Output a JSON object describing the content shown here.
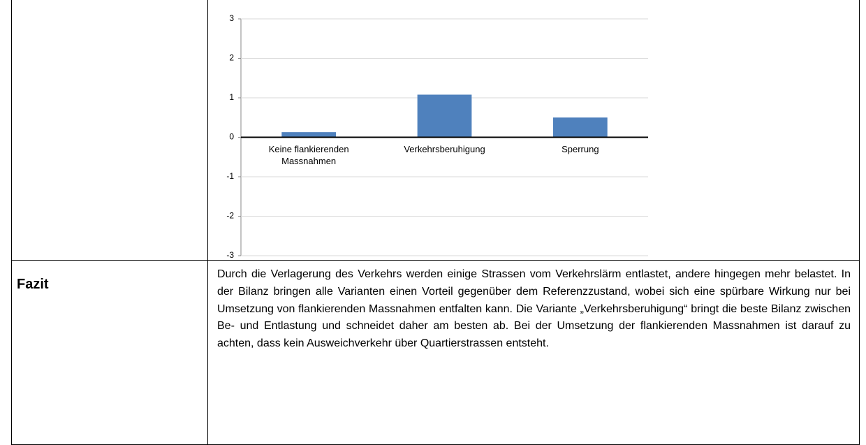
{
  "table": {
    "rows": [
      [
        ""
      ],
      [
        "Fazit",
        "Durch die Verlagerung des Verkehrs werden einige Strassen vom Verkehrslärm entlastet, andere hingegen mehr belastet. In der Bilanz bringen alle Varianten einen Vorteil gegenüber dem Referenzzustand, wobei sich eine spürbare Wirkung nur bei Umsetzung von flankierenden Massnahmen entfalten kann. Die Variante „Verkehrsberuhigung“ bringt die beste Bilanz zwischen Be- und Entlastung und schneidet daher am besten ab. Bei der Umsetzung der flankierenden Massnahmen ist darauf zu achten, dass kein Ausweichverkehr über Quartierstrassen entsteht."
      ]
    ]
  },
  "chart_data": {
    "type": "bar",
    "categories": [
      "Keine flankierenden Massnahmen",
      "Verkehrsberuhigung",
      "Sperrung"
    ],
    "values": [
      0.13,
      1.08,
      0.5
    ],
    "color": "#4f81bd",
    "ylim": [
      -3,
      3
    ],
    "yticks": [
      -3,
      -2,
      -1,
      0,
      1,
      2,
      3
    ],
    "grid": true
  }
}
